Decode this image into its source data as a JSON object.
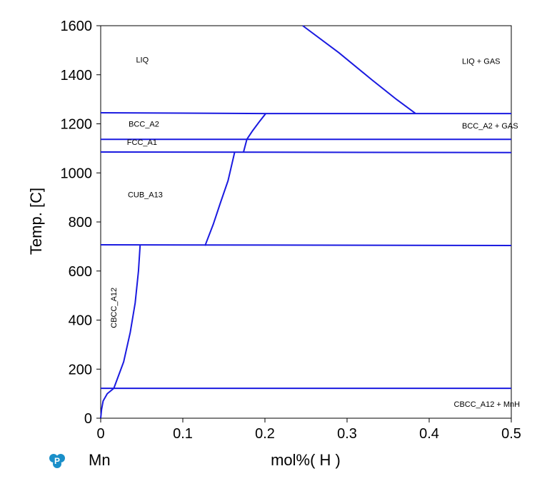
{
  "chart_data": {
    "type": "line",
    "title": "",
    "xlabel": "mol%( H )",
    "ylabel": "Temp. [C]",
    "x_left_label": "Mn",
    "xlim": [
      0,
      0.5
    ],
    "ylim": [
      0,
      1600
    ],
    "x_ticks": [
      0,
      0.1,
      0.2,
      0.3,
      0.4,
      0.5
    ],
    "x_tick_labels": [
      "0",
      "0.1",
      "0.2",
      "0.3",
      "0.4",
      "0.5"
    ],
    "y_ticks": [
      0,
      200,
      400,
      600,
      800,
      1000,
      1200,
      1400,
      1600
    ],
    "y_tick_labels": [
      "0",
      "200",
      "400",
      "600",
      "800",
      "1000",
      "1200",
      "1400",
      "1600"
    ],
    "grid": false,
    "line_color": "#1a1ae0",
    "logo_icon": "p-logo-icon",
    "logo_color": "#1a8fc9",
    "series": [
      {
        "x": [
          0.246,
          0.29,
          0.33,
          0.36,
          0.383
        ],
        "y": [
          1600,
          1490,
          1380,
          1300,
          1243
        ]
      },
      {
        "x": [
          0,
          0.2,
          0.5
        ],
        "y": [
          1245,
          1242,
          1242
        ]
      },
      {
        "x": [
          0.201,
          0.193,
          0.185,
          0.178
        ],
        "y": [
          1242,
          1208,
          1172,
          1137
        ]
      },
      {
        "x": [
          0,
          0.5
        ],
        "y": [
          1137,
          1137
        ]
      },
      {
        "x": [
          0.178,
          0.174
        ],
        "y": [
          1137,
          1086
        ]
      },
      {
        "x": [
          0,
          0.5
        ],
        "y": [
          1085,
          1083
        ]
      },
      {
        "x": [
          0.163,
          0.155,
          0.146,
          0.137,
          0.127
        ],
        "y": [
          1083,
          968,
          880,
          790,
          703
        ]
      },
      {
        "x": [
          0,
          0.5
        ],
        "y": [
          707,
          704
        ]
      },
      {
        "x": [
          0.048,
          0.046,
          0.042,
          0.036,
          0.028,
          0.016
        ],
        "y": [
          704,
          600,
          470,
          350,
          230,
          122
        ]
      },
      {
        "x": [
          0,
          0.5
        ],
        "y": [
          122,
          122
        ]
      },
      {
        "x": [
          0.016,
          0.008,
          0.003,
          0.001,
          0.0
        ],
        "y": [
          122,
          100,
          70,
          35,
          0
        ]
      }
    ],
    "annotations": [
      {
        "text": "LIQ",
        "x": 0.043,
        "y": 1450
      },
      {
        "text": "LIQ + GAS",
        "x": 0.44,
        "y": 1445
      },
      {
        "text": "BCC_A2",
        "x": 0.034,
        "y": 1189
      },
      {
        "text": "BCC_A2 + GAS",
        "x": 0.44,
        "y": 1181
      },
      {
        "text": "FCC_A1",
        "x": 0.032,
        "y": 1114
      },
      {
        "text": "CUB_A13",
        "x": 0.033,
        "y": 900
      },
      {
        "text": "CBCC_A12",
        "x": 0.019,
        "y": 450,
        "rotation": -90
      },
      {
        "text": "CBCC_A12 + MnH",
        "x": 0.43,
        "y": 47
      }
    ]
  }
}
